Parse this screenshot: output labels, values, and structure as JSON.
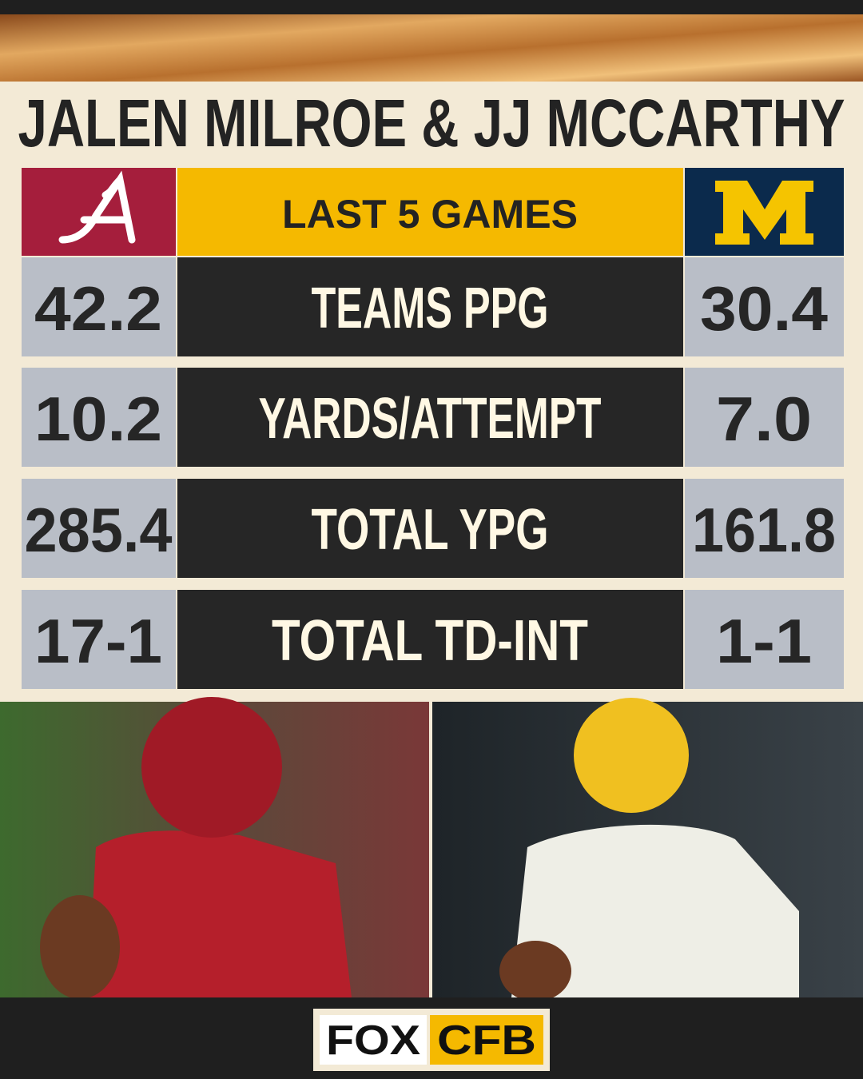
{
  "header": {
    "title": "JALEN MILROE & JJ MCCARTHY"
  },
  "table": {
    "heading": "LAST 5 GAMES",
    "rows": [
      {
        "label": "TEAMS PPG",
        "left": "42.2",
        "right": "30.4"
      },
      {
        "label": "YARDS/ATTEMPT",
        "left": "10.2",
        "right": "7.0"
      },
      {
        "label": "TOTAL YPG",
        "left": "285.4",
        "right": "161.8"
      },
      {
        "label": "TOTAL TD-INT",
        "left": "17-1",
        "right": "1-1"
      }
    ]
  },
  "footer": {
    "logo_left": "FOX",
    "logo_right": "CFB"
  }
}
